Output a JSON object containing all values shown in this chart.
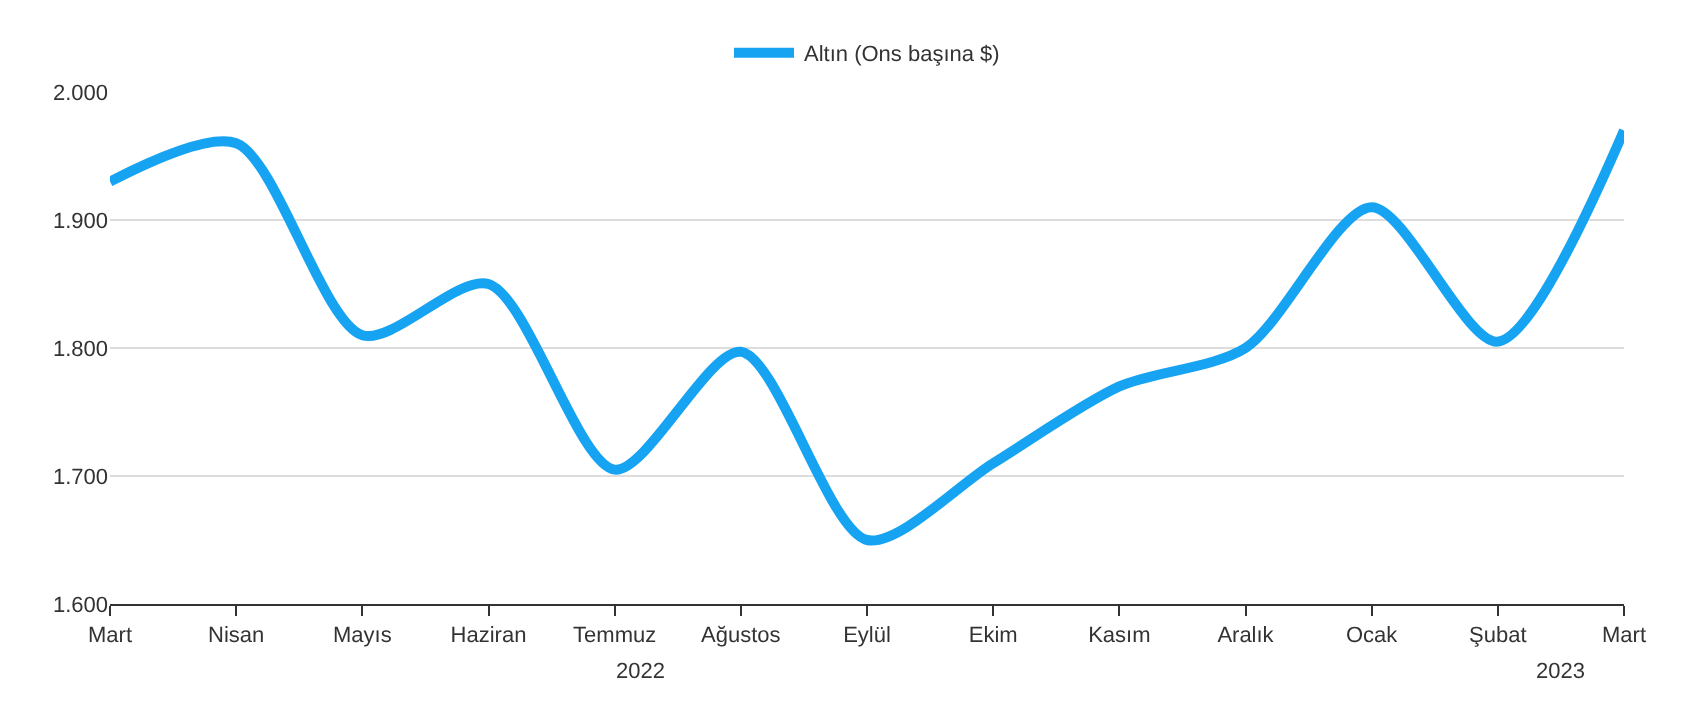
{
  "chart_data": {
    "type": "line",
    "categories": [
      "Mart",
      "Nisan",
      "Mayıs",
      "Haziran",
      "Temmuz",
      "Ağustos",
      "Eylül",
      "Ekim",
      "Kasım",
      "Aralık",
      "Ocak",
      "Şubat",
      "Mart"
    ],
    "series": [
      {
        "name": "Altın (Ons başına $)",
        "color": "#16a3f2",
        "values": [
          1930,
          1960,
          1810,
          1850,
          1705,
          1797,
          1650,
          1710,
          1770,
          1800,
          1910,
          1805,
          1970
        ]
      }
    ],
    "ylim": [
      1600,
      2000
    ],
    "yticks": [
      {
        "value": 1600,
        "label": "1.600"
      },
      {
        "value": 1700,
        "label": "1.700"
      },
      {
        "value": 1800,
        "label": "1.800"
      },
      {
        "value": 1900,
        "label": "1.900"
      },
      {
        "value": 2000,
        "label": "2.000"
      }
    ],
    "annotations": [
      "2022",
      "2023"
    ],
    "grid": "y",
    "legend": "top",
    "marker": "none",
    "line_style": "solid"
  }
}
